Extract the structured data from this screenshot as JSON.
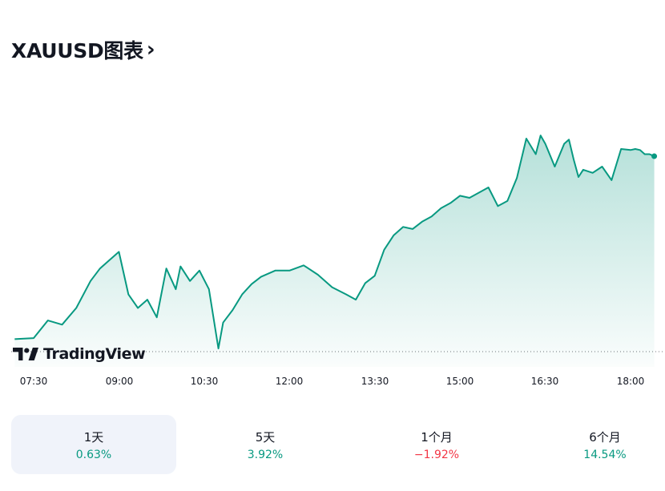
{
  "header": {
    "title": "XAUUSD图表",
    "chevron_icon": "chevron-right-icon"
  },
  "chart_data": {
    "type": "area",
    "series_color": "#089981",
    "baseline_style": "dotted",
    "x_tick_labels": [
      "07:30",
      "09:00",
      "10:30",
      "12:00",
      "13:30",
      "15:00",
      "16:30",
      "18:00"
    ],
    "x": [
      "07:10",
      "07:30",
      "07:45",
      "08:00",
      "08:15",
      "08:30",
      "08:40",
      "08:50",
      "09:00",
      "09:10",
      "09:20",
      "09:30",
      "09:40",
      "09:50",
      "10:00",
      "10:05",
      "10:15",
      "10:25",
      "10:35",
      "10:45",
      "10:50",
      "11:00",
      "11:10",
      "11:20",
      "11:30",
      "11:45",
      "12:00",
      "12:15",
      "12:30",
      "12:45",
      "13:00",
      "13:10",
      "13:20",
      "13:30",
      "13:40",
      "13:50",
      "14:00",
      "14:10",
      "14:20",
      "14:30",
      "14:40",
      "14:50",
      "15:00",
      "15:10",
      "15:20",
      "15:30",
      "15:40",
      "15:50",
      "16:00",
      "16:10",
      "16:20",
      "16:25",
      "16:30",
      "16:40",
      "16:50",
      "16:55",
      "17:00",
      "17:05",
      "17:10",
      "17:20",
      "17:30",
      "17:40",
      "17:50",
      "18:00",
      "18:05",
      "18:10",
      "18:15",
      "18:20",
      "18:25"
    ],
    "y": [
      12.0,
      13.0,
      30.0,
      26.0,
      42.0,
      68.0,
      80.0,
      88.0,
      96.0,
      55.0,
      42.0,
      50.0,
      33.0,
      80.0,
      60.0,
      82.0,
      68.0,
      78.0,
      60.0,
      3.0,
      28.0,
      40.0,
      55.0,
      65.0,
      72.0,
      78.0,
      78.0,
      83.0,
      74.0,
      62.0,
      55.0,
      50.0,
      66.0,
      73.0,
      98.0,
      112.0,
      120.0,
      118.0,
      125.0,
      130.0,
      138.0,
      143.0,
      150.0,
      148.0,
      153.0,
      158.0,
      140.0,
      145.0,
      167.0,
      205.0,
      190.0,
      208.0,
      200.0,
      178.0,
      200.0,
      204.0,
      185.0,
      168.0,
      175.0,
      172.0,
      178.0,
      165.0,
      195.0,
      194.0,
      195.0,
      194.0,
      190.0,
      190.0,
      188.0
    ]
  },
  "branding": {
    "logo_text": "TradingView",
    "logo_icon": "tradingview-logo-icon"
  },
  "periods": [
    {
      "label": "1天",
      "change": "0.63%",
      "direction": "up",
      "selected": true
    },
    {
      "label": "5天",
      "change": "3.92%",
      "direction": "up",
      "selected": false
    },
    {
      "label": "1个月",
      "change": "−1.92%",
      "direction": "down",
      "selected": false
    },
    {
      "label": "6个月",
      "change": "14.54%",
      "direction": "up",
      "selected": false
    }
  ]
}
